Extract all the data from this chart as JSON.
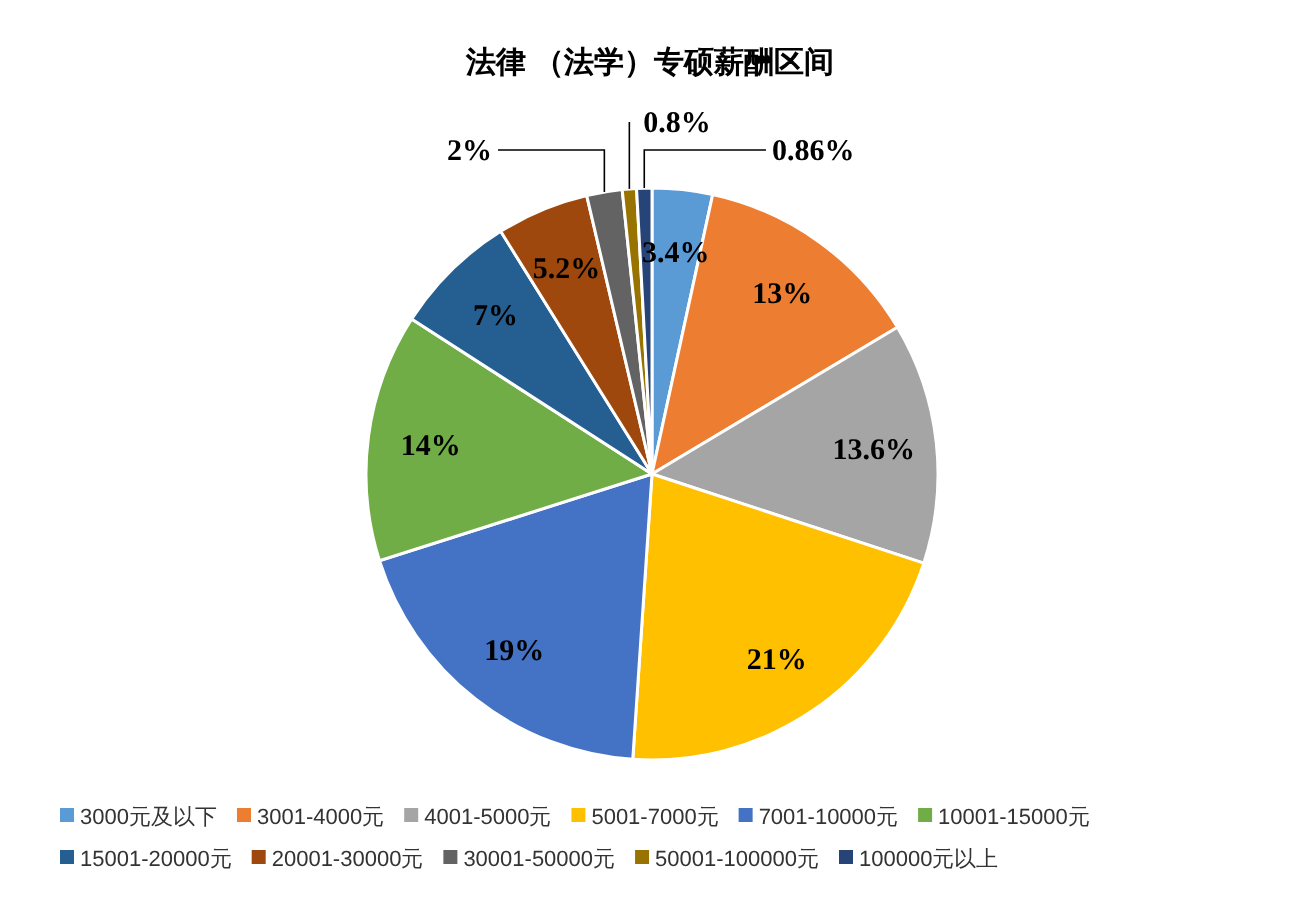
{
  "chart_data": {
    "type": "pie",
    "title": "法律 （法学）专硕薪酬区间",
    "categories": [
      "3000元及以下",
      "3001-4000元",
      "4001-5000元",
      "5001-7000元",
      "7001-10000元",
      "10001-15000元",
      "15001-20000元",
      "20001-30000元",
      "30001-50000元",
      "50001-100000元",
      "100000元以上"
    ],
    "values": [
      3.4,
      13,
      13.6,
      21,
      19,
      14,
      7,
      5.2,
      2,
      0.8,
      0.86
    ],
    "value_labels": [
      "3.4%",
      "13%",
      "13.6%",
      "21%",
      "19%",
      "14%",
      "7%",
      "5.2%",
      "2%",
      "0.8%",
      "0.86%"
    ],
    "colors": [
      "#5b9bd5",
      "#ed7d31",
      "#a5a5a5",
      "#ffc000",
      "#4472c4",
      "#70ad47",
      "#255e91",
      "#9e480e",
      "#636363",
      "#997300",
      "#264478"
    ],
    "legend": "bottom"
  }
}
